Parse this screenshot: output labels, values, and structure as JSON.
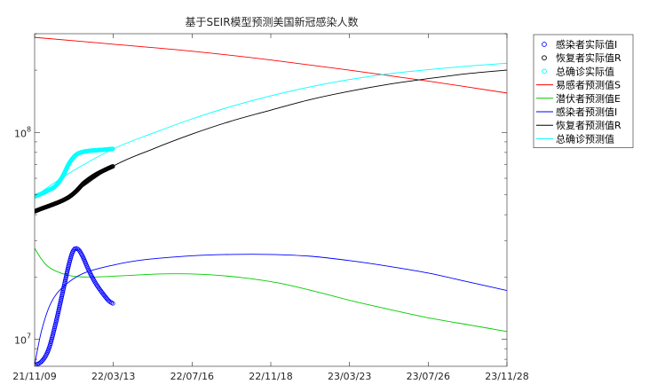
{
  "chart_data": {
    "type": "line",
    "title": "基于SEIR模型预测美国新冠感染人数",
    "xlabel": "",
    "ylabel": "",
    "y_scale": "log",
    "x_range": [
      "2021-11-09",
      "2023-11-28"
    ],
    "ylim": [
      7400000,
      300000000
    ],
    "x_ticks": [
      "21/11/09",
      "22/03/13",
      "22/07/16",
      "22/11/18",
      "23/03/23",
      "23/07/26",
      "23/11/28"
    ],
    "y_ticks": [
      {
        "value": 10000000,
        "label": "10",
        "exp": "7"
      },
      {
        "value": 100000000,
        "label": "10",
        "exp": "8"
      }
    ],
    "grid": false,
    "legend_position": "outside-right",
    "series": [
      {
        "name": "感染者实际值I",
        "kind": "markers",
        "marker": "circle",
        "color": "#0000ff",
        "x": [
          "2021-11-09",
          "2021-11-20",
          "2021-12-01",
          "2021-12-12",
          "2021-12-23",
          "2022-01-03",
          "2022-01-10",
          "2022-01-17",
          "2022-01-24",
          "2022-01-31",
          "2022-02-07",
          "2022-02-14",
          "2022-02-21",
          "2022-02-28",
          "2022-03-07",
          "2022-03-13"
        ],
        "y": [
          7500000,
          7800000,
          8900000,
          11800000,
          16600000,
          23400000,
          27000000,
          27200000,
          25200000,
          22500000,
          20300000,
          18600000,
          17300000,
          16200000,
          15300000,
          14900000
        ]
      },
      {
        "name": "恢复者实际值R",
        "kind": "markers",
        "marker": "circle",
        "color": "#000000",
        "x": [
          "2021-11-09",
          "2021-11-20",
          "2021-12-01",
          "2021-12-12",
          "2021-12-23",
          "2022-01-03",
          "2022-01-14",
          "2022-01-25",
          "2022-02-05",
          "2022-02-16",
          "2022-02-27",
          "2022-03-08",
          "2022-03-13"
        ],
        "y": [
          41500000,
          42800000,
          44000000,
          45300000,
          46800000,
          48800000,
          52000000,
          56500000,
          60000000,
          63000000,
          65500000,
          67500000,
          68500000
        ]
      },
      {
        "name": "总确诊实际值",
        "kind": "markers",
        "marker": "circle",
        "color": "#00ffff",
        "x": [
          "2021-11-09",
          "2021-11-20",
          "2021-12-01",
          "2021-12-12",
          "2021-12-23",
          "2022-01-03",
          "2022-01-14",
          "2022-01-25",
          "2022-02-05",
          "2022-02-16",
          "2022-02-27",
          "2022-03-08",
          "2022-03-13"
        ],
        "y": [
          49000000,
          50500000,
          52500000,
          55000000,
          61000000,
          71000000,
          78000000,
          80500000,
          81500000,
          82000000,
          82500000,
          83000000,
          83200000
        ]
      },
      {
        "name": "易感者预测值S",
        "kind": "line",
        "color": "#ff0000",
        "x": [
          "2021-11-09",
          "2022-03-13",
          "2022-07-16",
          "2022-11-18",
          "2023-03-23",
          "2023-07-26",
          "2023-11-28"
        ],
        "y": [
          288000000,
          267000000,
          247000000,
          224000000,
          200000000,
          177000000,
          155000000
        ]
      },
      {
        "name": "潜伏者预测值E",
        "kind": "line",
        "color": "#00cc00",
        "x": [
          "2021-11-09",
          "2021-11-30",
          "2022-01-04",
          "2022-02-10",
          "2022-04-01",
          "2022-06-01",
          "2022-08-01",
          "2022-10-01",
          "2022-12-01",
          "2023-02-01",
          "2023-04-01",
          "2023-06-01",
          "2023-08-01",
          "2023-10-01",
          "2023-11-28"
        ],
        "y": [
          27500000,
          22500000,
          20300000,
          20000000,
          20300000,
          20700000,
          20600000,
          19900000,
          18700000,
          16900000,
          15200000,
          13800000,
          12600000,
          11700000,
          10900000
        ]
      },
      {
        "name": "感染者预测值I",
        "kind": "line",
        "color": "#0000ff",
        "x": [
          "2021-11-09",
          "2021-11-20",
          "2021-12-05",
          "2021-12-25",
          "2022-01-25",
          "2022-03-13",
          "2022-05-01",
          "2022-07-16",
          "2022-09-15",
          "2022-11-18",
          "2023-01-20",
          "2023-03-23",
          "2023-05-25",
          "2023-07-26",
          "2023-09-25",
          "2023-11-28"
        ],
        "y": [
          7500000,
          11000000,
          15000000,
          18000000,
          20800000,
          22800000,
          24200000,
          25300000,
          25700000,
          25700000,
          25200000,
          24000000,
          22500000,
          20900000,
          19000000,
          17200000
        ]
      },
      {
        "name": "恢复者预测值R",
        "kind": "line",
        "color": "#000000",
        "x": [
          "2021-11-09",
          "2022-01-01",
          "2022-03-13",
          "2022-05-15",
          "2022-07-16",
          "2022-09-15",
          "2022-11-18",
          "2023-01-20",
          "2023-03-23",
          "2023-05-25",
          "2023-07-26",
          "2023-09-25",
          "2023-11-28"
        ],
        "y": [
          41500000,
          49000000,
          68500000,
          83000000,
          98000000,
          113000000,
          128000000,
          144000000,
          158000000,
          171000000,
          182000000,
          192000000,
          200000000
        ]
      },
      {
        "name": "总确诊预测值",
        "kind": "line",
        "color": "#00ffff",
        "x": [
          "2021-11-09",
          "2022-01-01",
          "2022-03-13",
          "2022-05-15",
          "2022-07-16",
          "2022-09-15",
          "2022-11-18",
          "2023-01-20",
          "2023-03-23",
          "2023-05-25",
          "2023-07-26",
          "2023-09-25",
          "2023-11-28"
        ],
        "y": [
          49000000,
          63000000,
          83000000,
          99000000,
          116000000,
          133000000,
          150000000,
          166000000,
          180000000,
          192000000,
          201000000,
          209000000,
          216000000
        ]
      }
    ]
  }
}
